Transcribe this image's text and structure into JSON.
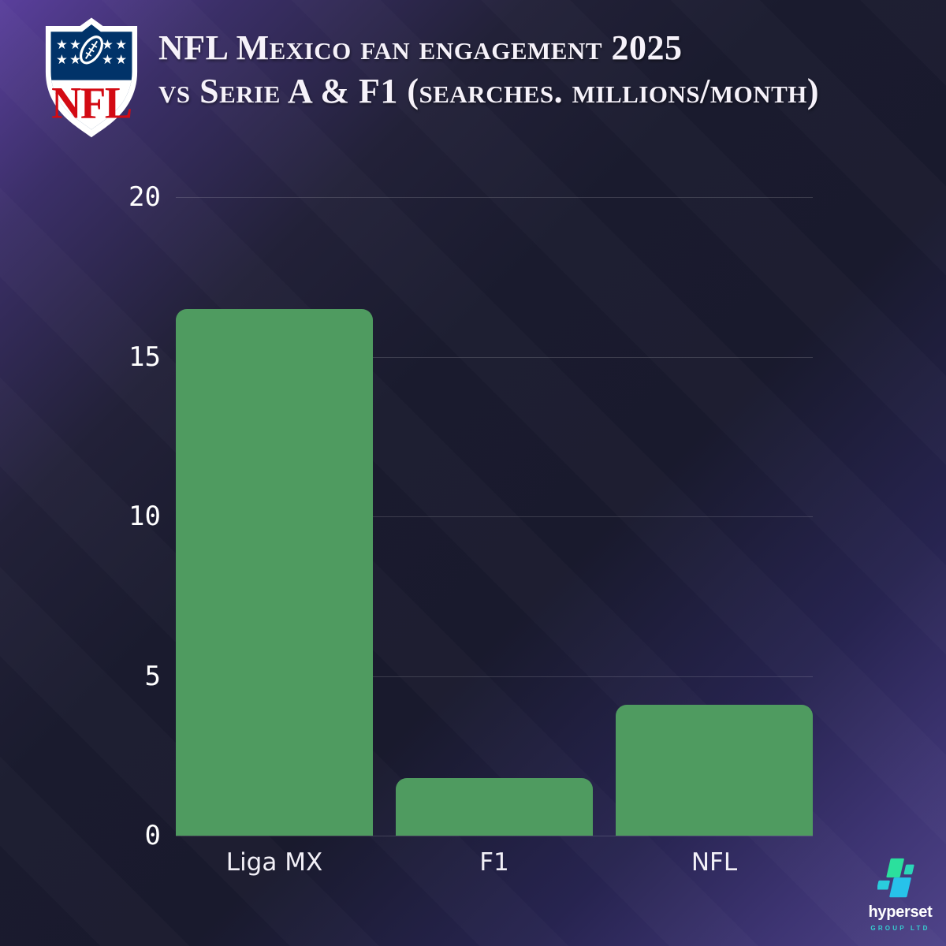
{
  "header": {
    "logo_text": "NFL",
    "title_line1": "NFL Mexico fan engagement 2025",
    "title_line2": "vs Serie A & F1 (searches. millions/month)"
  },
  "chart_data": {
    "type": "bar",
    "title": "NFL Mexico fan engagement 2025 vs Serie A & F1 (searches. millions/month)",
    "categories": [
      "Liga MX",
      "F1",
      "NFL"
    ],
    "values": [
      16.5,
      1.8,
      4.1
    ],
    "xlabel": "",
    "ylabel": "",
    "ylim": [
      0,
      20
    ],
    "yticks": [
      0,
      5,
      10,
      15,
      20
    ],
    "grid": true,
    "legend": false,
    "bar_color": "#4f9b60"
  },
  "footer": {
    "brand_name": "hyperset",
    "brand_subtitle": "GROUP LTD"
  },
  "colors": {
    "background_corner_purple": "#5a3f9c",
    "background_navy": "#1a1b2e",
    "bar_green": "#4f9b60",
    "grid_line": "rgba(255,255,255,0.15)",
    "title_text": "#f6f2fa",
    "axis_text": "#ffffff",
    "brand_teal_green": "#2be09d",
    "brand_cyan": "#27c2ea",
    "nfl_red": "#d30a13",
    "nfl_blue": "#013369"
  }
}
